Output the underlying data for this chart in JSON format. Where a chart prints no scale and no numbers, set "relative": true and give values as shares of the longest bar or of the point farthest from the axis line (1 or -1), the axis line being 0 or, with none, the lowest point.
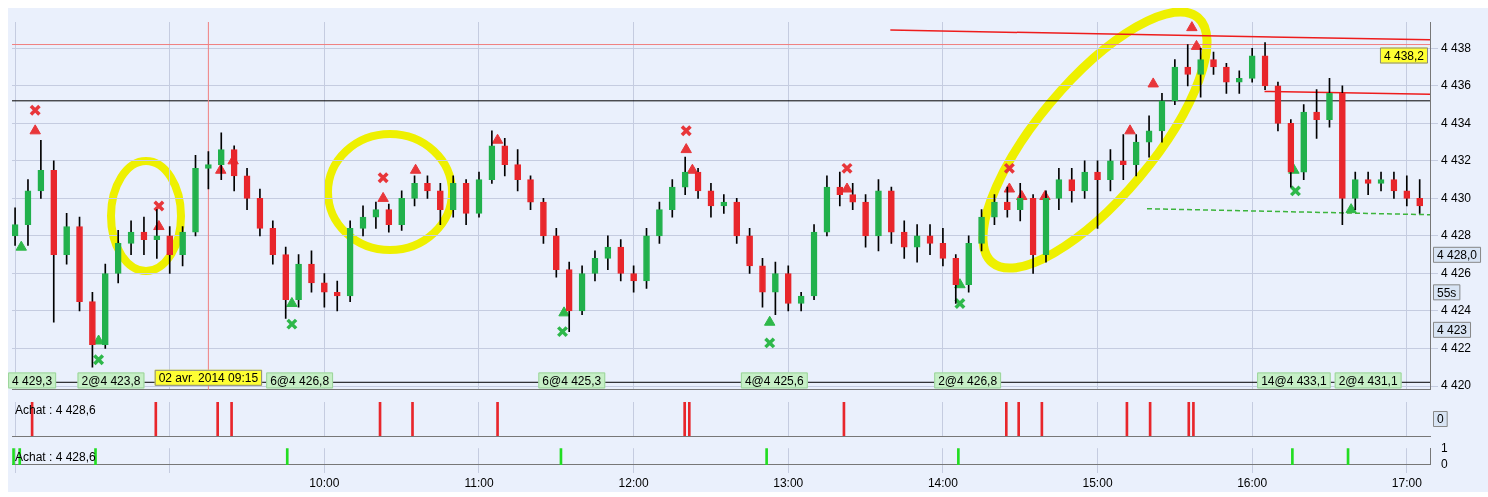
{
  "chart_data": [
    {
      "type": "candlestick",
      "xlim": [
        7.98,
        17.15
      ],
      "ylim": [
        4419.8,
        4439.4
      ],
      "xticks": [
        {
          "value": 8,
          "label": null
        },
        {
          "value": 9,
          "label": null
        },
        {
          "value": 10,
          "label": null
        },
        {
          "value": 11,
          "label": null
        },
        {
          "value": 12,
          "label": null
        },
        {
          "value": 13,
          "label": null
        },
        {
          "value": 14,
          "label": null
        },
        {
          "value": 15,
          "label": null
        },
        {
          "value": 16,
          "label": null
        },
        {
          "value": 17,
          "label": null
        }
      ],
      "yticks": [
        {
          "value": 4420,
          "label": "4 420"
        },
        {
          "value": 4422,
          "label": "4 422"
        },
        {
          "value": 4424,
          "label": "4 424"
        },
        {
          "value": 4426,
          "label": "4 426"
        },
        {
          "value": 4428,
          "label": "4 428"
        },
        {
          "value": 4430,
          "label": "4 430"
        },
        {
          "value": 4432,
          "label": "4 432"
        },
        {
          "value": 4434,
          "label": "4 434"
        },
        {
          "value": 4436,
          "label": "4 436"
        },
        {
          "value": 4438,
          "label": "4 438"
        }
      ],
      "tick_labels": "y",
      "grid": true,
      "x": [
        8,
        8.0833,
        8.1667,
        8.25,
        8.3333,
        8.4167,
        8.5,
        8.5833,
        8.6667,
        8.75,
        8.8333,
        8.9167,
        9,
        9.0833,
        9.1667,
        9.25,
        9.3333,
        9.4167,
        9.5,
        9.5833,
        9.6667,
        9.75,
        9.8333,
        9.9167,
        10,
        10.0833,
        10.1667,
        10.25,
        10.3333,
        10.4167,
        10.5,
        10.5833,
        10.6667,
        10.75,
        10.8333,
        10.9167,
        11,
        11.0833,
        11.1667,
        11.25,
        11.3333,
        11.4167,
        11.5,
        11.5833,
        11.6667,
        11.75,
        11.8333,
        11.9167,
        12,
        12.0833,
        12.1667,
        12.25,
        12.3333,
        12.4167,
        12.5,
        12.5833,
        12.6667,
        12.75,
        12.8333,
        12.9167,
        13,
        13.0833,
        13.1667,
        13.25,
        13.3333,
        13.4167,
        13.5,
        13.5833,
        13.6667,
        13.75,
        13.8333,
        13.9167,
        14,
        14.0833,
        14.1667,
        14.25,
        14.3333,
        14.4167,
        14.5,
        14.5833,
        14.6667,
        14.75,
        14.8333,
        14.9167,
        15,
        15.0833,
        15.1667,
        15.25,
        15.3333,
        15.4167,
        15.5,
        15.5833,
        15.6667,
        15.75,
        15.8333,
        15.9167,
        16,
        16.0833,
        16.1667,
        16.25,
        16.3333,
        16.4167,
        16.5,
        16.5833,
        16.6667,
        16.75,
        16.8333,
        16.9167,
        17,
        17.0833
      ],
      "ohlc": [
        [
          4428.0,
          4429.5,
          4427.5,
          4428.6
        ],
        [
          4428.6,
          4431.0,
          4427.5,
          4430.4
        ],
        [
          4430.4,
          4433.1,
          4430.0,
          4431.5
        ],
        [
          4431.5,
          4432.0,
          4423.4,
          4427.0
        ],
        [
          4427.0,
          4429.2,
          4426.5,
          4428.5
        ],
        [
          4428.5,
          4429.0,
          4424.0,
          4424.5
        ],
        [
          4424.5,
          4425.0,
          4421.0,
          4422.2
        ],
        [
          4422.2,
          4426.5,
          4422.0,
          4426.0
        ],
        [
          4426.0,
          4428.3,
          4425.5,
          4427.6
        ],
        [
          4427.6,
          4428.8,
          4427.0,
          4428.2
        ],
        [
          4428.2,
          4429.0,
          4427.0,
          4427.8
        ],
        [
          4427.8,
          4429.4,
          4426.8,
          4428.0
        ],
        [
          4428.0,
          4428.5,
          4426.0,
          4427.0
        ],
        [
          4427.0,
          4428.5,
          4426.4,
          4428.2
        ],
        [
          4428.2,
          4432.3,
          4428.0,
          4431.6
        ],
        [
          4431.6,
          4432.5,
          4430.5,
          4431.8
        ],
        [
          4431.8,
          4433.5,
          4431.0,
          4432.6
        ],
        [
          4432.6,
          4432.8,
          4430.4,
          4431.2
        ],
        [
          4431.2,
          4431.6,
          4429.4,
          4430.0
        ],
        [
          4430.0,
          4430.5,
          4428.0,
          4428.4
        ],
        [
          4428.4,
          4428.8,
          4426.5,
          4427.0
        ],
        [
          4427.0,
          4427.4,
          4423.6,
          4424.6
        ],
        [
          4424.6,
          4427.0,
          4424.2,
          4426.5
        ],
        [
          4426.5,
          4427.2,
          4425.0,
          4425.5
        ],
        [
          4425.5,
          4426.0,
          4424.2,
          4425.0
        ],
        [
          4425.0,
          4425.6,
          4424.0,
          4424.8
        ],
        [
          4424.8,
          4428.8,
          4424.5,
          4428.4
        ],
        [
          4428.4,
          4429.6,
          4428.0,
          4429.0
        ],
        [
          4429.0,
          4429.8,
          4428.4,
          4429.4
        ],
        [
          4429.4,
          4429.7,
          4428.2,
          4428.6
        ],
        [
          4428.6,
          4430.4,
          4428.3,
          4430.0
        ],
        [
          4430.0,
          4431.2,
          4429.6,
          4430.8
        ],
        [
          4430.8,
          4431.2,
          4430.0,
          4430.4
        ],
        [
          4430.4,
          4430.8,
          4428.6,
          4429.4
        ],
        [
          4429.4,
          4431.2,
          4429.0,
          4430.8
        ],
        [
          4430.8,
          4431.0,
          4428.6,
          4429.2
        ],
        [
          4429.2,
          4431.4,
          4429.0,
          4431.0
        ],
        [
          4431.0,
          4433.6,
          4430.8,
          4432.8
        ],
        [
          4432.8,
          4433.2,
          4431.2,
          4431.8
        ],
        [
          4431.8,
          4432.6,
          4430.4,
          4431.0
        ],
        [
          4431.0,
          4431.2,
          4429.4,
          4429.8
        ],
        [
          4429.8,
          4430.0,
          4427.6,
          4428.0
        ],
        [
          4428.0,
          4428.4,
          4425.8,
          4426.2
        ],
        [
          4426.2,
          4426.6,
          4422.9,
          4424.0
        ],
        [
          4424.0,
          4426.4,
          4423.8,
          4426.0
        ],
        [
          4426.0,
          4427.2,
          4425.6,
          4426.8
        ],
        [
          4426.8,
          4428.0,
          4426.2,
          4427.4
        ],
        [
          4427.4,
          4427.8,
          4425.6,
          4426.0
        ],
        [
          4426.0,
          4426.4,
          4425.0,
          4425.6
        ],
        [
          4425.6,
          4428.4,
          4425.2,
          4428.0
        ],
        [
          4428.0,
          4429.8,
          4427.6,
          4429.4
        ],
        [
          4429.4,
          4431.0,
          4429.0,
          4430.6
        ],
        [
          4430.6,
          4432.2,
          4430.2,
          4431.4
        ],
        [
          4431.4,
          4431.6,
          4430.0,
          4430.4
        ],
        [
          4430.4,
          4430.8,
          4429.0,
          4429.6
        ],
        [
          4429.6,
          4430.2,
          4429.2,
          4429.8
        ],
        [
          4429.8,
          4430.0,
          4427.6,
          4428.0
        ],
        [
          4428.0,
          4428.4,
          4426.0,
          4426.4
        ],
        [
          4426.4,
          4426.8,
          4424.2,
          4425.0
        ],
        [
          4425.0,
          4426.6,
          4423.8,
          4426.0
        ],
        [
          4426.0,
          4426.4,
          4424.0,
          4424.4
        ],
        [
          4424.4,
          4425.0,
          4424.0,
          4424.8
        ],
        [
          4424.8,
          4428.6,
          4424.6,
          4428.2
        ],
        [
          4428.2,
          4431.2,
          4428.0,
          4430.6
        ],
        [
          4430.6,
          4431.4,
          4429.6,
          4430.2
        ],
        [
          4430.2,
          4430.8,
          4429.4,
          4429.8
        ],
        [
          4429.8,
          4430.2,
          4427.4,
          4428.0
        ],
        [
          4428.0,
          4431.0,
          4427.2,
          4430.4
        ],
        [
          4430.4,
          4430.6,
          4427.6,
          4428.2
        ],
        [
          4428.2,
          4428.8,
          4426.8,
          4427.4
        ],
        [
          4427.4,
          4428.6,
          4426.6,
          4428.0
        ],
        [
          4428.0,
          4428.6,
          4427.0,
          4427.6
        ],
        [
          4427.6,
          4428.4,
          4426.4,
          4426.8
        ],
        [
          4426.8,
          4427.0,
          4424.4,
          4425.4
        ],
        [
          4425.4,
          4428.0,
          4425.0,
          4427.6
        ],
        [
          4427.6,
          4429.4,
          4427.2,
          4429.0
        ],
        [
          4429.0,
          4430.2,
          4428.6,
          4429.8
        ],
        [
          4429.8,
          4430.6,
          4429.0,
          4429.4
        ],
        [
          4429.4,
          4430.8,
          4428.8,
          4430.0
        ],
        [
          4430.0,
          4430.2,
          4426.0,
          4427.0
        ],
        [
          4427.0,
          4430.4,
          4426.6,
          4430.0
        ],
        [
          4430.0,
          4431.6,
          4429.4,
          4431.0
        ],
        [
          4431.0,
          4431.6,
          4429.8,
          4430.4
        ],
        [
          4430.4,
          4432.0,
          4430.0,
          4431.4
        ],
        [
          4431.4,
          4432.0,
          4428.4,
          4431.0
        ],
        [
          4431.0,
          4432.6,
          4430.4,
          4432.0
        ],
        [
          4432.0,
          4433.4,
          4431.0,
          4431.8
        ],
        [
          4431.8,
          4433.4,
          4431.2,
          4433.0
        ],
        [
          4433.0,
          4434.4,
          4432.2,
          4433.6
        ],
        [
          4433.6,
          4435.6,
          4433.0,
          4435.2
        ],
        [
          4435.2,
          4437.4,
          4435.0,
          4437.0
        ],
        [
          4437.0,
          4438.2,
          4436.0,
          4436.6
        ],
        [
          4436.6,
          4438.0,
          4435.4,
          4437.4
        ],
        [
          4437.4,
          4437.8,
          4436.6,
          4437.0
        ],
        [
          4437.0,
          4437.2,
          4435.6,
          4436.2
        ],
        [
          4436.2,
          4436.8,
          4435.6,
          4436.4
        ],
        [
          4436.4,
          4438.0,
          4436.2,
          4437.6
        ],
        [
          4437.6,
          4438.3,
          4435.8,
          4436.0
        ],
        [
          4436.0,
          4436.2,
          4433.6,
          4434.0
        ],
        [
          4434.0,
          4434.2,
          4430.6,
          4431.4
        ],
        [
          4431.4,
          4435.0,
          4431.0,
          4434.6
        ],
        [
          4434.6,
          4435.8,
          4433.2,
          4434.2
        ],
        [
          4434.2,
          4436.4,
          4433.8,
          4435.6
        ],
        [
          4435.6,
          4436.0,
          4428.6,
          4430.0
        ],
        [
          4430.0,
          4431.4,
          4429.4,
          4431.0
        ],
        [
          4431.0,
          4431.4,
          4430.2,
          4430.8
        ],
        [
          4430.8,
          4431.4,
          4430.4,
          4431.0
        ],
        [
          4431.0,
          4431.4,
          4430.0,
          4430.4
        ],
        [
          4430.4,
          4431.2,
          4429.6,
          4430.0
        ],
        [
          4430.0,
          4431.0,
          4429.2,
          4429.6
        ]
      ],
      "colors": [
        "#22b14c",
        "#22b14c",
        "#22b14c",
        "#e8262b",
        "#22b14c",
        "#e8262b",
        "#e8262b",
        "#22b14c",
        "#22b14c",
        "#22b14c",
        "#e8262b",
        "#22b14c",
        "#e8262b",
        "#22b14c",
        "#22b14c",
        "#22b14c",
        "#22b14c",
        "#e8262b",
        "#e8262b",
        "#e8262b",
        "#e8262b",
        "#e8262b",
        "#22b14c",
        "#e8262b",
        "#e8262b",
        "#e8262b",
        "#22b14c",
        "#22b14c",
        "#22b14c",
        "#e8262b",
        "#22b14c",
        "#22b14c",
        "#e8262b",
        "#e8262b",
        "#22b14c",
        "#e8262b",
        "#22b14c",
        "#22b14c",
        "#e8262b",
        "#e8262b",
        "#e8262b",
        "#e8262b",
        "#e8262b",
        "#e8262b",
        "#22b14c",
        "#22b14c",
        "#22b14c",
        "#e8262b",
        "#e8262b",
        "#22b14c",
        "#22b14c",
        "#22b14c",
        "#22b14c",
        "#e8262b",
        "#e8262b",
        "#22b14c",
        "#e8262b",
        "#e8262b",
        "#e8262b",
        "#22b14c",
        "#e8262b",
        "#22b14c",
        "#22b14c",
        "#22b14c",
        "#e8262b",
        "#e8262b",
        "#e8262b",
        "#22b14c",
        "#e8262b",
        "#e8262b",
        "#22b14c",
        "#e8262b",
        "#e8262b",
        "#e8262b",
        "#22b14c",
        "#22b14c",
        "#22b14c",
        "#e8262b",
        "#22b14c",
        "#e8262b",
        "#22b14c",
        "#22b14c",
        "#e8262b",
        "#22b14c",
        "#e8262b",
        "#22b14c",
        "#e8262b",
        "#22b14c",
        "#22b14c",
        "#22b14c",
        "#22b14c",
        "#e8262b",
        "#22b14c",
        "#e8262b",
        "#e8262b",
        "#22b14c",
        "#22b14c",
        "#e8262b",
        "#e8262b",
        "#e8262b",
        "#22b14c",
        "#e8262b",
        "#22b14c",
        "#e8262b",
        "#22b14c",
        "#e8262b",
        "#22b14c",
        "#e8262b",
        "#e8262b",
        "#e8262b"
      ],
      "series": [
        {
          "type": "line",
          "color": "#ee1c1c",
          "x": [
            13.66,
            17.15
          ],
          "values": [
            4438.97,
            4438.45
          ]
        },
        {
          "type": "line",
          "color": "#ee1c1c",
          "x": [
            16.08,
            17.15
          ],
          "values": [
            4435.7,
            4435.55
          ]
        },
        {
          "type": "line",
          "color": "#3cb43c",
          "line_style": "dashed",
          "x": [
            15.32,
            17.15
          ],
          "values": [
            4429.45,
            4429.13
          ]
        },
        {
          "type": "scatter",
          "marker": "cross",
          "color": "#e8363a",
          "x": [
            8.13,
            8.93,
            10.38,
            12.34,
            13.38,
            14.43
          ],
          "values": [
            4434.7,
            4429.6,
            4431.1,
            4433.6,
            4431.6,
            4431.6
          ]
        },
        {
          "type": "scatter",
          "marker": "triangle",
          "color": "#e8363a",
          "x": [
            8.13,
            8.93,
            9.33,
            9.41,
            10.38,
            10.59,
            11.12,
            12.34,
            12.38,
            13.38,
            14.43,
            14.51,
            14.66,
            15.21,
            15.36,
            15.61,
            15.64
          ],
          "values": [
            4433.6,
            4428.5,
            4431.5,
            4432.0,
            4430.0,
            4431.5,
            4433.1,
            4432.6,
            4431.5,
            4430.5,
            4430.5,
            4430.1,
            4430.1,
            4433.6,
            4436.1,
            4439.1,
            4438.1
          ]
        },
        {
          "type": "scatter",
          "marker": "triangle",
          "color": "#2eb84a",
          "x": [
            8.04,
            8.54,
            9.79,
            11.55,
            12.88,
            14.11,
            16.27,
            16.64
          ],
          "values": [
            4427.4,
            4422.4,
            4424.4,
            4423.9,
            4423.4,
            4425.4,
            4431.5,
            4429.4
          ]
        },
        {
          "type": "scatter",
          "marker": "cross",
          "color": "#2eb84a",
          "x": [
            8.54,
            9.79,
            11.54,
            12.88,
            14.11,
            16.28
          ],
          "values": [
            4421.4,
            4423.3,
            4422.9,
            4422.3,
            4424.4,
            4430.4
          ]
        }
      ],
      "ref_lines": [
        {
          "axis": "y",
          "value": 4435.2,
          "color": "#000000"
        },
        {
          "axis": "y",
          "value": 4438.2,
          "label": "4 438,2",
          "color": "#f08080"
        },
        {
          "axis": "y",
          "value": 4420.2,
          "color": "#000000"
        },
        {
          "axis": "x",
          "value": 9.25,
          "label": "02 avr. 2014 09:15",
          "color": "#f08080"
        }
      ],
      "annotations": [
        "4 428,0",
        "55s",
        "4 423",
        {
          "text": "4 429,3",
          "x": 8.11,
          "y": 4420.3
        },
        {
          "text": "2@4 423,8",
          "x": 8.62,
          "y": 4420.3
        },
        {
          "text": "6@4 426,8",
          "x": 9.84,
          "y": 4420.3
        },
        {
          "text": "6@4 425,3",
          "x": 11.6,
          "y": 4420.3
        },
        {
          "text": "4@4 425,6",
          "x": 12.91,
          "y": 4420.3
        },
        {
          "text": "2@4 426,8",
          "x": 14.16,
          "y": 4420.3
        },
        {
          "text": "14@4 433,1",
          "x": 16.27,
          "y": 4420.3
        },
        {
          "text": "2@4 431,1",
          "x": 16.75,
          "y": 4420.3
        }
      ]
    },
    {
      "type": "bar",
      "title": "Achat : 4 428,6",
      "relative": true,
      "xlim": [
        7.98,
        17.15
      ],
      "xticks": [
        {
          "value": 8,
          "label": null
        },
        {
          "value": 9,
          "label": null
        },
        {
          "value": 10,
          "label": null
        },
        {
          "value": 11,
          "label": null
        },
        {
          "value": 12,
          "label": null
        },
        {
          "value": 13,
          "label": null
        },
        {
          "value": 14,
          "label": null
        },
        {
          "value": 15,
          "label": null
        },
        {
          "value": 16,
          "label": null
        },
        {
          "value": 17,
          "label": null
        }
      ],
      "tick_labels": false,
      "grid": "x",
      "series": [
        {
          "color": "#e8262b",
          "x": [
            8.11,
            8.91,
            9.31,
            9.4,
            10.36,
            10.57,
            11.12,
            12.33,
            12.36,
            13.36,
            14.41,
            14.49,
            14.64,
            15.19,
            15.34,
            15.59,
            15.62
          ],
          "values": [
            1,
            1,
            1,
            1,
            1,
            1,
            1,
            1,
            1,
            1,
            1,
            1,
            1,
            1,
            1,
            1,
            1
          ]
        }
      ],
      "annotations": [
        "0"
      ]
    },
    {
      "type": "bar",
      "title": "Achat : 4 428,6",
      "xlim": [
        7.98,
        17.15
      ],
      "ylim": [
        0,
        1
      ],
      "yticks": [
        0,
        1
      ],
      "xticks": [
        {
          "value": 8,
          "label": null
        },
        {
          "value": 9,
          "label": null
        },
        {
          "value": 10,
          "label": "10:00"
        },
        {
          "value": 11,
          "label": "11:00"
        },
        {
          "value": 12,
          "label": "12:00"
        },
        {
          "value": 13,
          "label": "13:00"
        },
        {
          "value": 14,
          "label": "14:00"
        },
        {
          "value": 15,
          "label": "15:00"
        },
        {
          "value": 16,
          "label": "16:00"
        },
        {
          "value": 17,
          "label": "17:00"
        }
      ],
      "grid": "x",
      "series": [
        {
          "color": "#22dd22",
          "x": [
            7.99,
            8.03,
            8.52,
            9.76,
            11.53,
            12.86,
            14.1,
            16.26,
            16.62
          ],
          "values": [
            1,
            1,
            1,
            1,
            1,
            1,
            1,
            1,
            1
          ]
        }
      ]
    }
  ]
}
